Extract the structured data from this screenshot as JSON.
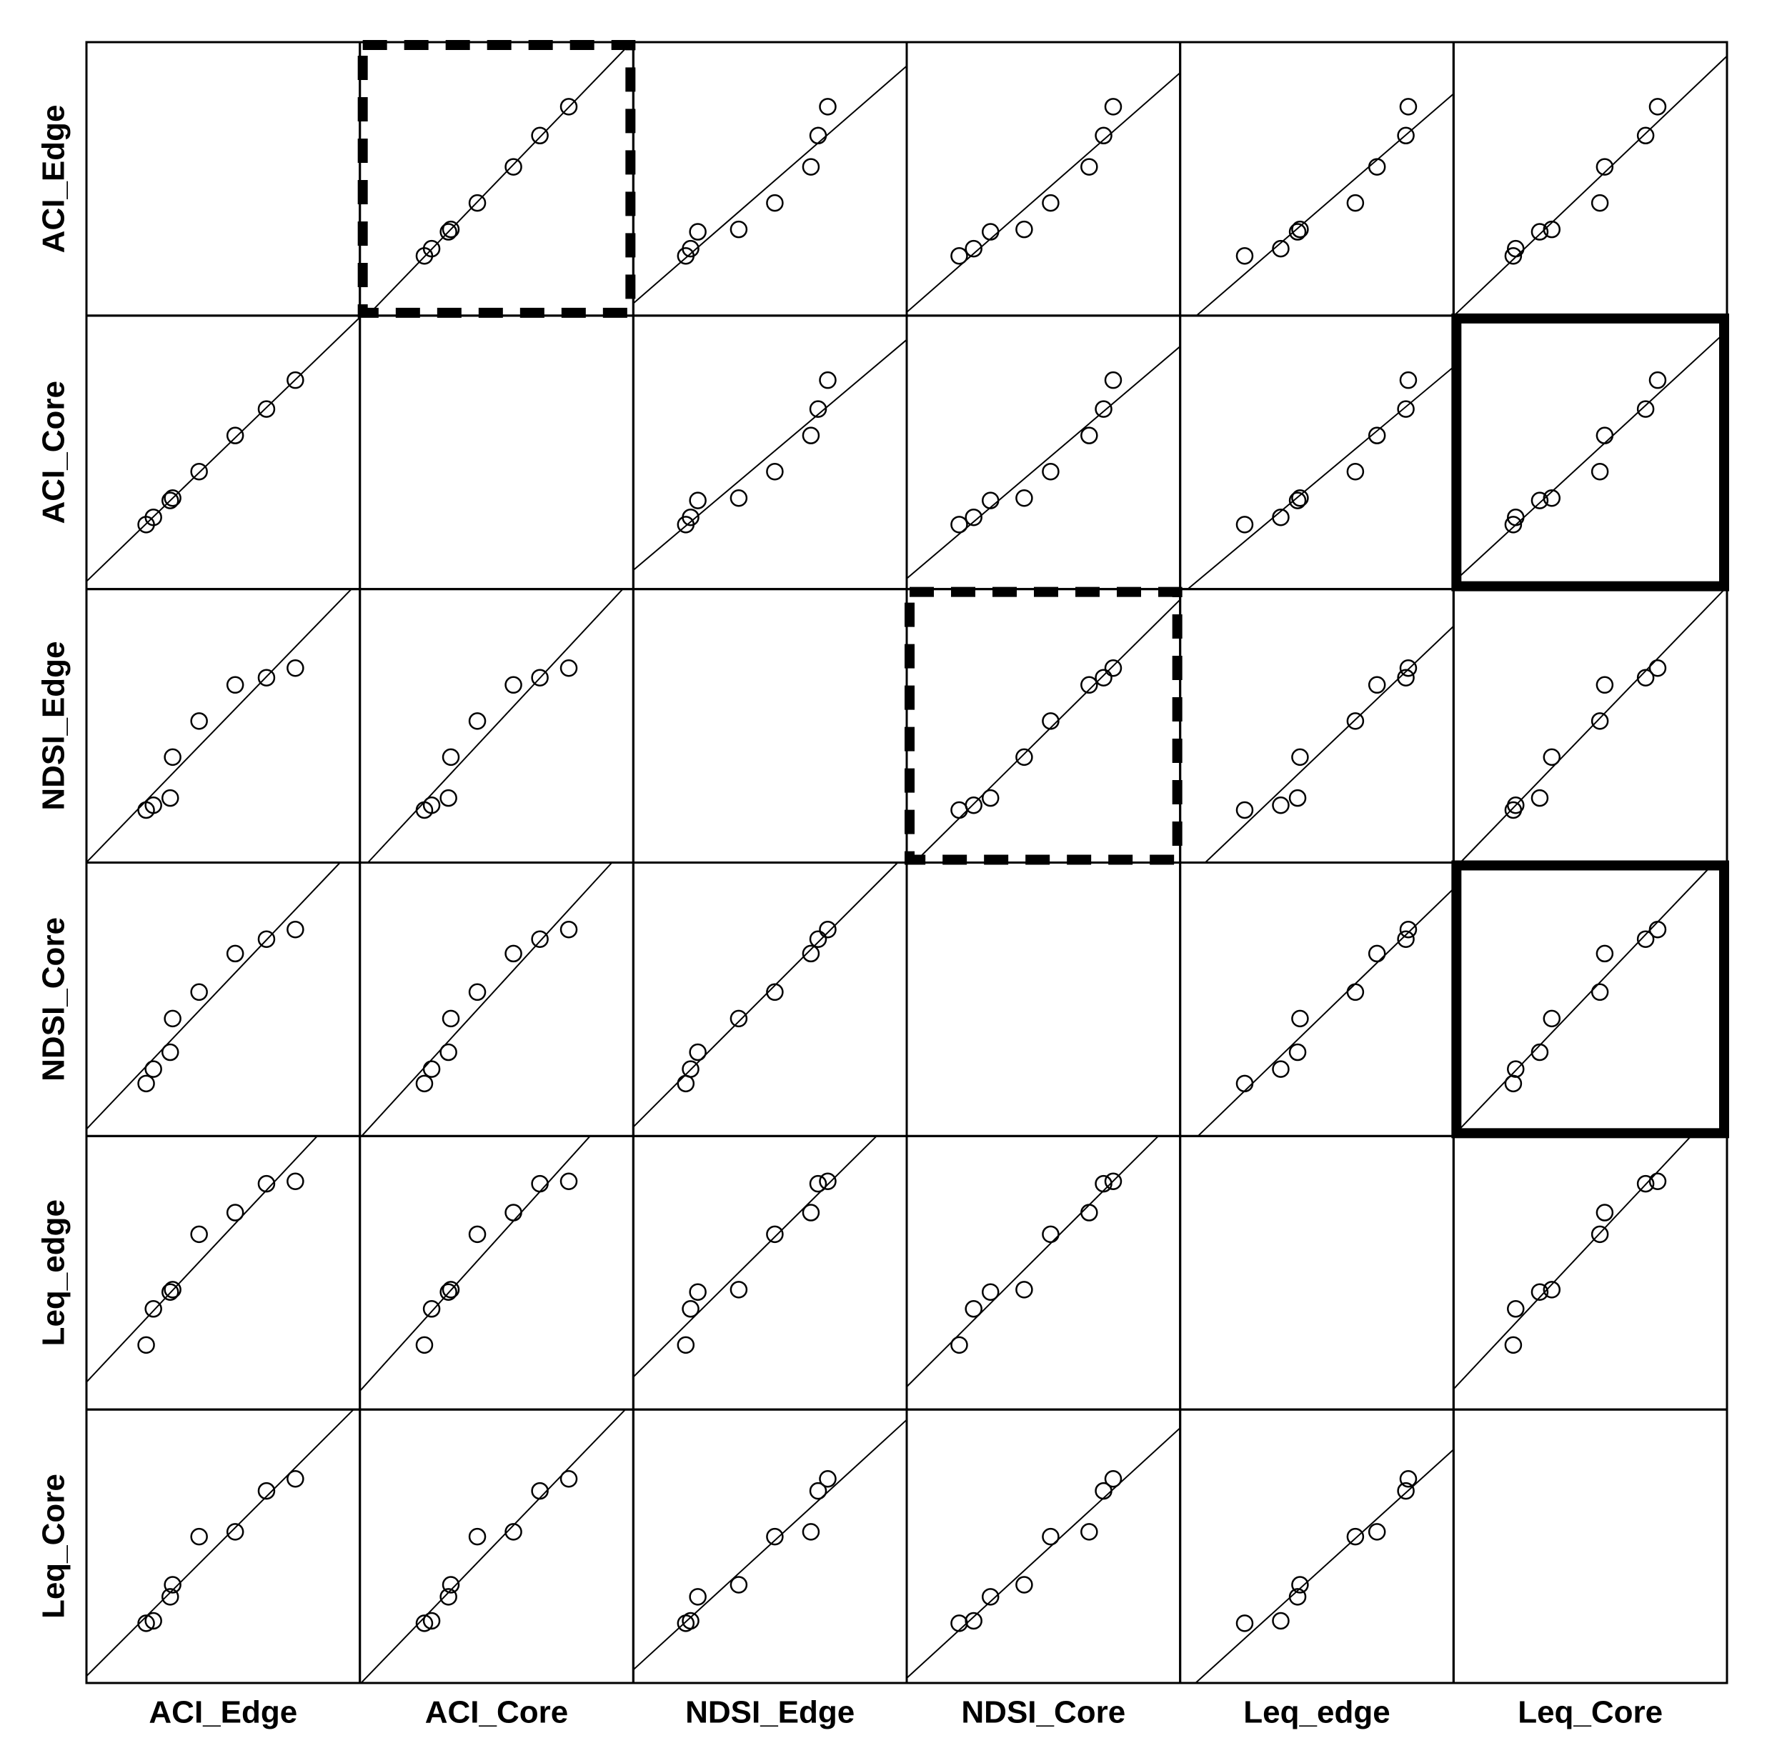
{
  "chart_data": {
    "type": "scatter",
    "variables": [
      "ACI_Edge",
      "ACI_Core",
      "NDSI_Edge",
      "NDSI_Core",
      "Leq_edge",
      "Leq_Core"
    ],
    "row_labels": [
      "ACI_Edge",
      "ACI_Core",
      "NDSI_Edge",
      "NDSI_Core",
      "Leq_edge",
      "Leq_Core"
    ],
    "column_labels": [
      "ACI_Edge",
      "ACI_Core",
      "NDSI_Edge",
      "NDSI_Core",
      "Leq_edge",
      "Leq_Core"
    ],
    "observations": {
      "ACI_Edge": [
        0.18,
        0.21,
        0.28,
        0.29,
        0.4,
        0.55,
        0.68,
        0.8
      ],
      "ACI_Core": [
        0.2,
        0.23,
        0.3,
        0.31,
        0.42,
        0.57,
        0.68,
        0.8
      ],
      "NDSI_Edge": [
        0.15,
        0.17,
        0.2,
        0.37,
        0.52,
        0.67,
        0.7,
        0.74
      ],
      "NDSI_Core": [
        0.15,
        0.21,
        0.28,
        0.42,
        0.53,
        0.69,
        0.75,
        0.79
      ],
      "Leq_edge": [
        0.2,
        0.35,
        0.42,
        0.43,
        0.66,
        0.75,
        0.87,
        0.88
      ],
      "Leq_Core": [
        0.18,
        0.19,
        0.29,
        0.34,
        0.54,
        0.56,
        0.73,
        0.78
      ]
    },
    "fit_line": "linear regression in each off-diagonal panel",
    "diagonal": "empty",
    "highlighted_panels": [
      {
        "row": "ACI_Edge",
        "column": "ACI_Core",
        "style": "dashed"
      },
      {
        "row": "ACI_Core",
        "column": "Leq_Core",
        "style": "solid"
      },
      {
        "row": "NDSI_Edge",
        "column": "NDSI_Core",
        "style": "dashed"
      },
      {
        "row": "NDSI_Core",
        "column": "Leq_Core",
        "style": "solid"
      }
    ],
    "grid": false,
    "legend": "none",
    "title": "",
    "xlabel": "",
    "ylabel": ""
  }
}
